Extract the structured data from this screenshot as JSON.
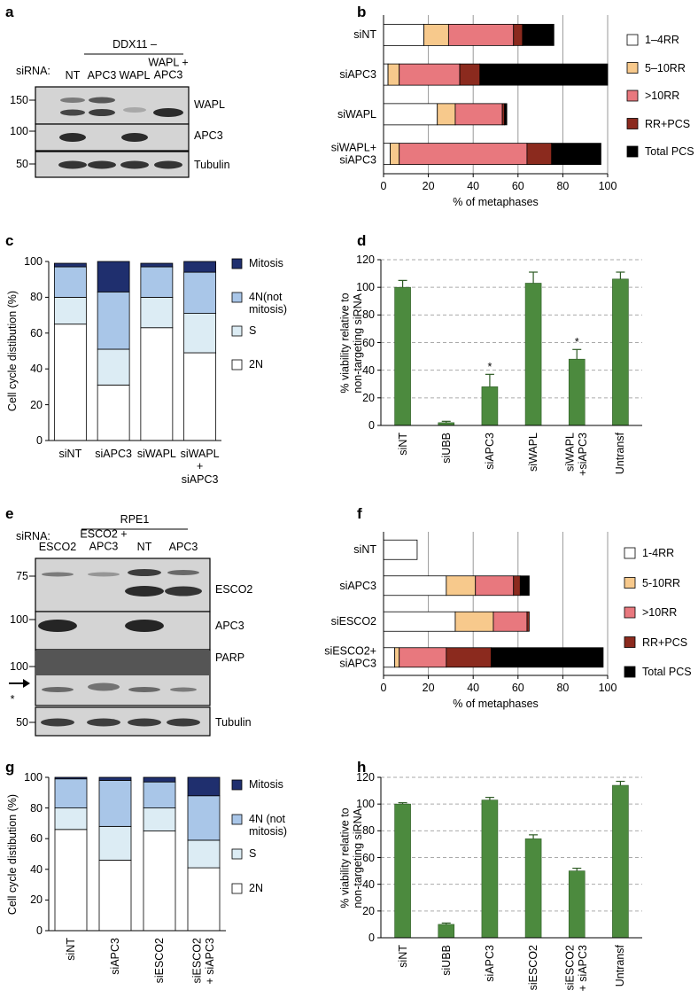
{
  "panels": [
    "a",
    "b",
    "c",
    "d",
    "e",
    "f",
    "g",
    "h"
  ],
  "blot_a": {
    "header": "DDX11 –",
    "row_label": "siRNA:",
    "lanes": [
      "NT",
      "APC3",
      "WAPL",
      "WAPL +\nAPC3"
    ],
    "markers": [
      150,
      100,
      50
    ],
    "bands": [
      "WAPL",
      "APC3",
      "Tubulin"
    ]
  },
  "blot_e": {
    "header": "RPE1",
    "row_label": "siRNA:",
    "lanes": [
      "ESCO2",
      "ESCO2 +\nAPC3",
      "NT",
      "APC3"
    ],
    "markers": [
      75,
      100,
      100,
      50
    ],
    "bands": [
      "ESCO2",
      "APC3",
      "PARP",
      "Tubulin"
    ],
    "asterisk": "*"
  },
  "chart_data": [
    {
      "type": "barh",
      "stacked": true,
      "categories": [
        "siNT",
        "siAPC3",
        "siWAPL",
        "siWAPL+\nsiAPC3"
      ],
      "series": [
        {
          "name": "1–4RR",
          "color": "#ffffff",
          "values": [
            18,
            2,
            24,
            3
          ]
        },
        {
          "name": "5–10RR",
          "color": "#f7c98c",
          "values": [
            11,
            5,
            8,
            4
          ]
        },
        {
          "name": ">10RR",
          "color": "#e8787e",
          "values": [
            29,
            27,
            21,
            57
          ]
        },
        {
          "name": "RR+PCS",
          "color": "#8b2a1e",
          "values": [
            4,
            9,
            1,
            11
          ]
        },
        {
          "name": "Total PCS",
          "color": "#000000",
          "values": [
            14,
            57,
            1,
            22
          ]
        }
      ],
      "xlim": [
        0,
        100
      ],
      "xticks": [
        0,
        20,
        40,
        60,
        80,
        100
      ],
      "xlabel": "% of metaphases",
      "grid": true,
      "legend": "right"
    },
    {
      "type": "bar",
      "stacked": true,
      "categories": [
        "siNT",
        "siAPC3",
        "siWAPL",
        "siWAPL\n+\nsiAPC3"
      ],
      "series": [
        {
          "name": "2N",
          "color": "#ffffff",
          "values": [
            65,
            31,
            63,
            49
          ]
        },
        {
          "name": "S",
          "color": "#dcecf4",
          "values": [
            15,
            20,
            17,
            22
          ]
        },
        {
          "name": "4N(not\nmitosis)",
          "color": "#a9c6e8",
          "values": [
            17,
            32,
            17,
            23
          ]
        },
        {
          "name": "Mitosis",
          "color": "#1f2f6e",
          "values": [
            2,
            17,
            2,
            6
          ]
        }
      ],
      "ylim": [
        0,
        100
      ],
      "yticks": [
        0,
        20,
        40,
        60,
        80,
        100
      ],
      "ylabel": "Cell cycle distibution (%)",
      "grid": false,
      "legend": "right"
    },
    {
      "type": "bar",
      "categories": [
        "siNT",
        "siUBB",
        "siAPC3",
        "siWAPL",
        "siWAPL\n+siAPC3",
        "Untransf"
      ],
      "values": [
        100,
        2,
        28,
        103,
        48,
        106
      ],
      "errors": [
        5,
        1,
        9,
        8,
        7,
        5
      ],
      "annotations": [
        null,
        null,
        "*",
        null,
        "*",
        null
      ],
      "color": "#4c8a3e",
      "ylim": [
        0,
        120
      ],
      "yticks": [
        0,
        20,
        40,
        60,
        80,
        100,
        120
      ],
      "ylabel": "% viability relative to\nnon-targeting siRNA",
      "grid": true,
      "rotate_labels": true
    },
    {
      "type": "barh",
      "stacked": true,
      "categories": [
        "siNT",
        "siAPC3",
        "siESCO2",
        "siESCO2+\nsiAPC3"
      ],
      "series": [
        {
          "name": "1-4RR",
          "color": "#ffffff",
          "values": [
            15,
            28,
            32,
            5
          ]
        },
        {
          "name": "5-10RR",
          "color": "#f7c98c",
          "values": [
            0,
            13,
            17,
            2
          ]
        },
        {
          "name": ">10RR",
          "color": "#e8787e",
          "values": [
            0,
            17,
            15,
            21
          ]
        },
        {
          "name": "RR+PCS",
          "color": "#8b2a1e",
          "values": [
            0,
            3,
            1,
            20
          ]
        },
        {
          "name": "Total PCS",
          "color": "#000000",
          "values": [
            0,
            4,
            0,
            50
          ]
        }
      ],
      "xlim": [
        0,
        100
      ],
      "xticks": [
        0,
        20,
        40,
        60,
        80,
        100
      ],
      "xlabel": "% of metaphases",
      "grid": true,
      "legend": "right"
    },
    {
      "type": "bar",
      "stacked": true,
      "categories": [
        "siNT",
        "siAPC3",
        "siESCO2",
        "siESCO2\n+ siAPC3"
      ],
      "series": [
        {
          "name": "2N",
          "color": "#ffffff",
          "values": [
            66,
            46,
            65,
            41
          ]
        },
        {
          "name": "S",
          "color": "#dcecf4",
          "values": [
            14,
            22,
            15,
            18
          ]
        },
        {
          "name": "4N (not\nmitosis)",
          "color": "#a9c6e8",
          "values": [
            19,
            30,
            17,
            29
          ]
        },
        {
          "name": "Mitosis",
          "color": "#1f2f6e",
          "values": [
            1,
            2,
            3,
            12
          ]
        }
      ],
      "ylim": [
        0,
        100
      ],
      "yticks": [
        0,
        20,
        40,
        60,
        80,
        100
      ],
      "ylabel": "Cell cycle distibution (%)",
      "grid": false,
      "legend": "right",
      "rotate_labels": true
    },
    {
      "type": "bar",
      "categories": [
        "siNT",
        "siUBB",
        "siAPC3",
        "siESCO2",
        "siESCO2\n+ siAPC3",
        "Untransf"
      ],
      "values": [
        100,
        10,
        103,
        74,
        50,
        114
      ],
      "errors": [
        1,
        1,
        2,
        3,
        2,
        3
      ],
      "color": "#4c8a3e",
      "ylim": [
        0,
        120
      ],
      "yticks": [
        0,
        20,
        40,
        60,
        80,
        100,
        120
      ],
      "ylabel": "% viability relative to\nnon-targeting siRNA",
      "grid": true,
      "rotate_labels": true
    }
  ]
}
